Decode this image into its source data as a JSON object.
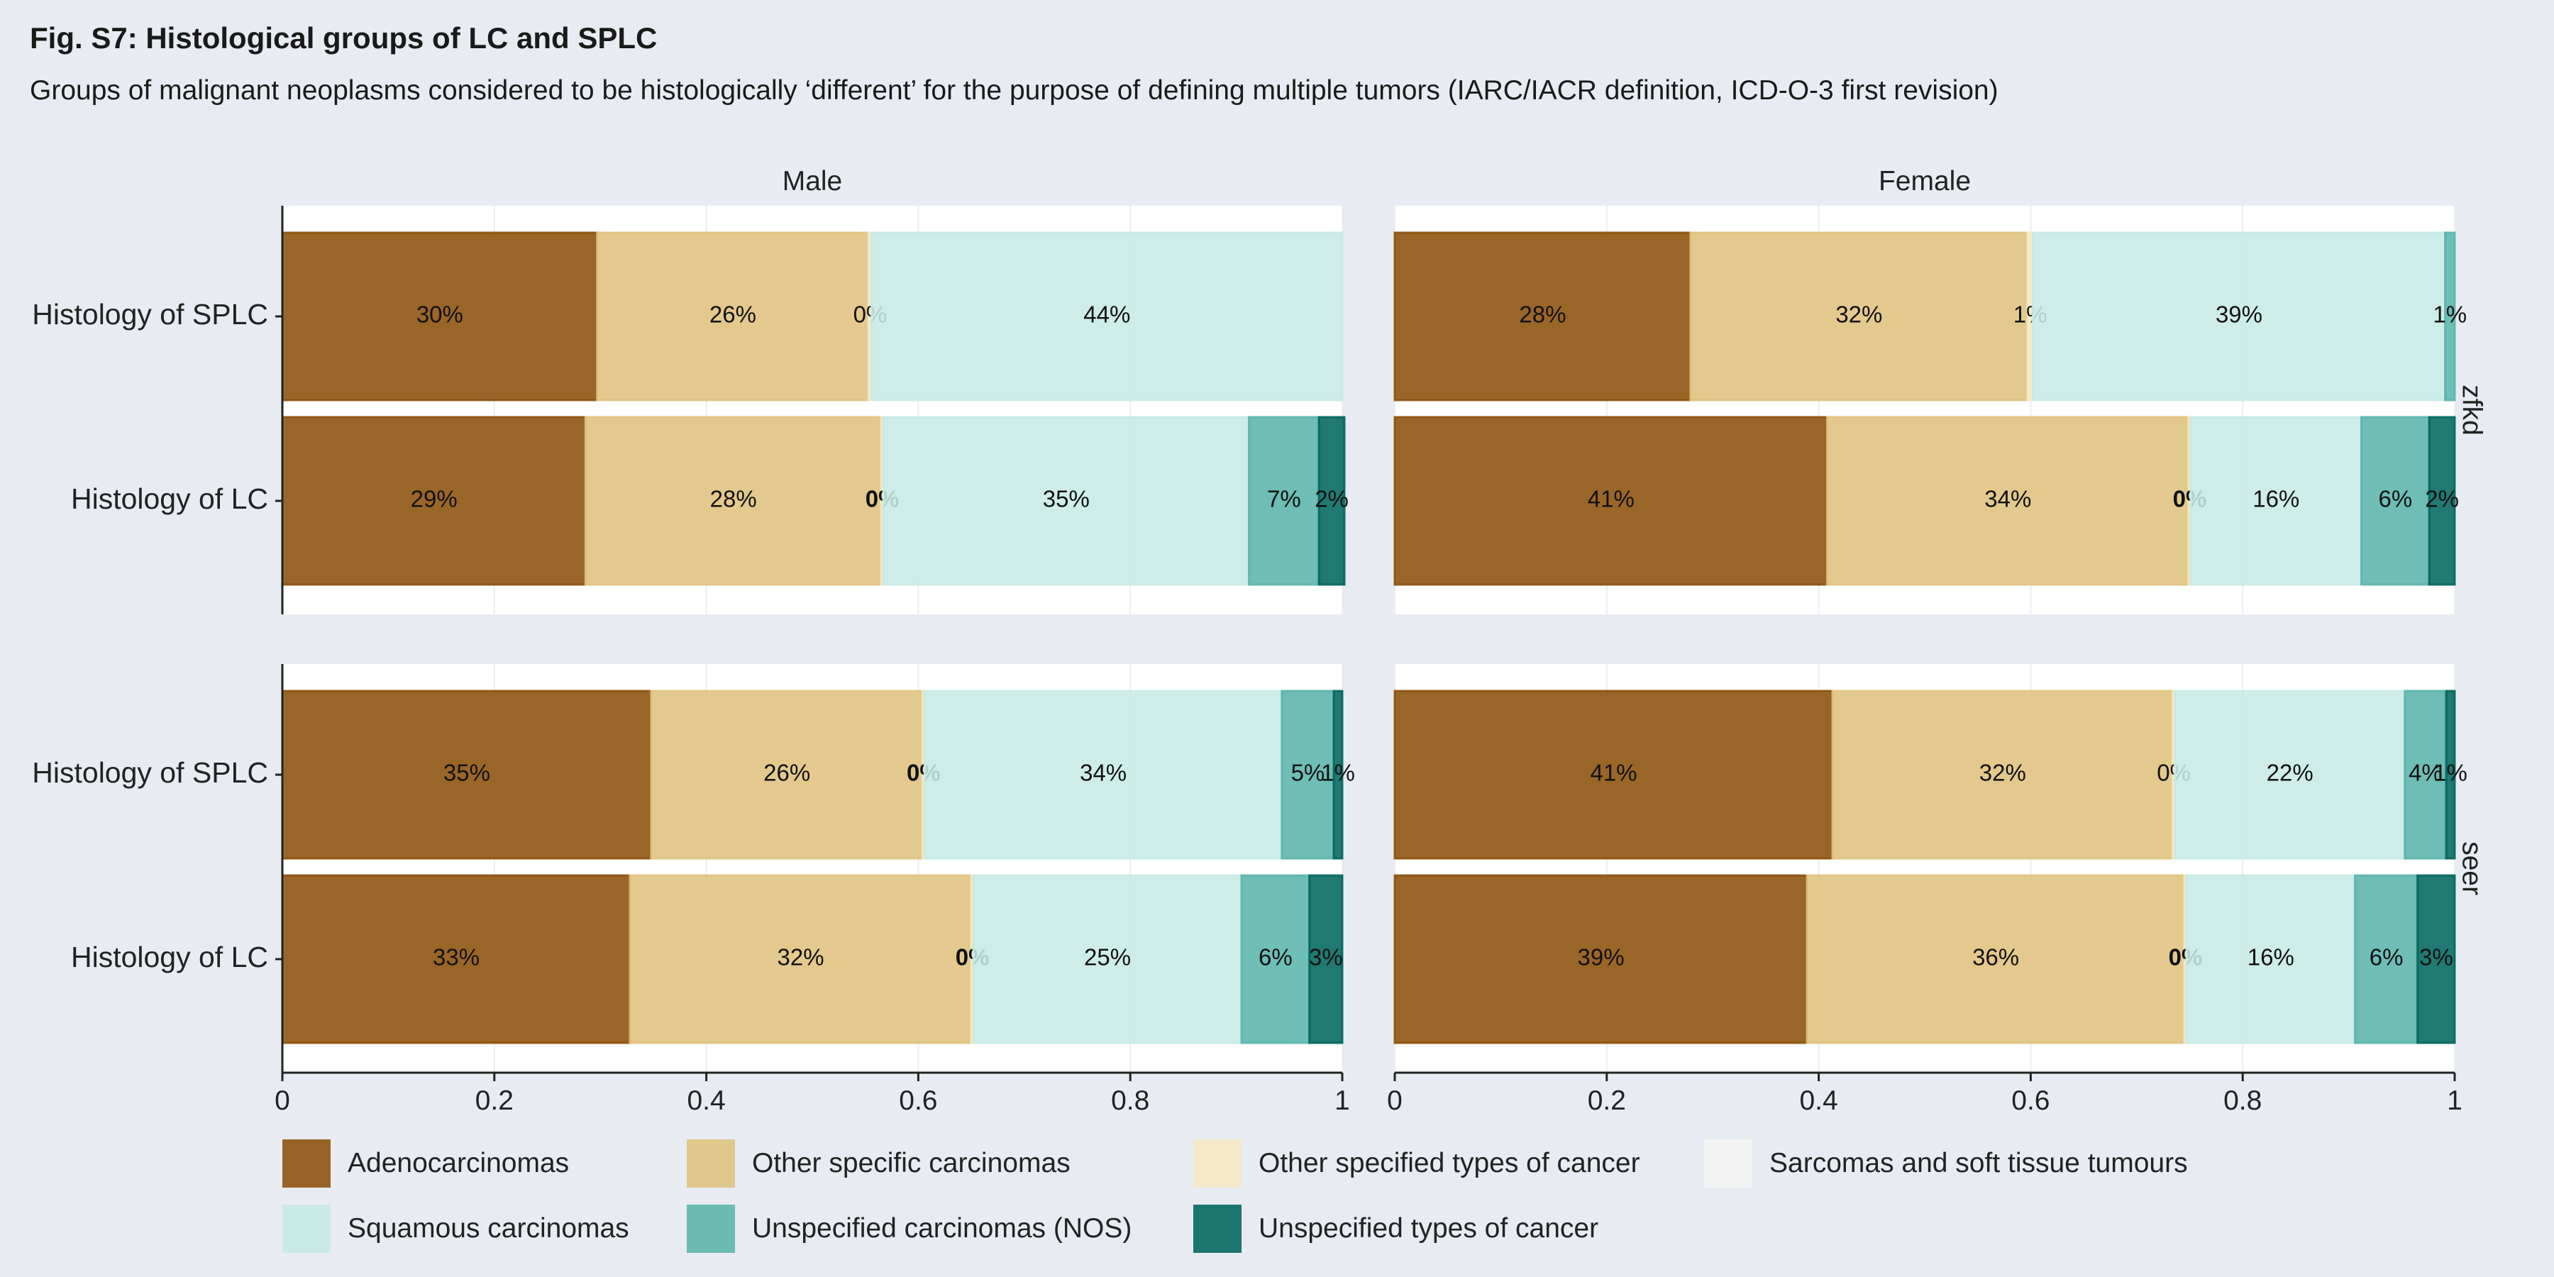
{
  "figure": {
    "title": "Fig. S7: Histological groups of LC and SPLC",
    "subtitle": "Groups of malignant neoplasms considered to be histologically ‘different’ for the purpose of defining multiple tumors (IARC/IACR definition, ICD-O-3 first revision)"
  },
  "colors": {
    "Adenocarcinomas": "#8c510a",
    "Other specific carcinomas": "#dfc27d",
    "Other specified types of cancer": "#f6e8c3",
    "Sarcomas and soft tissue tumours": "#f5f5f5",
    "Squamous carcinomas": "#c7eae5",
    "Unspecified carcinomas (NOS)": "#5ab4ac",
    "Unspecified types of cancer": "#01665e"
  },
  "legend": {
    "row1": [
      "Adenocarcinomas",
      "Other specific carcinomas",
      "Other specified types of cancer",
      "Sarcomas and soft tissue tumours"
    ],
    "row2": [
      "Squamous carcinomas",
      "Unspecified carcinomas (NOS)",
      "Unspecified types of cancer"
    ]
  },
  "chart_data": {
    "type": "bar",
    "orientation": "horizontal",
    "stacked": true,
    "columns": [
      "Male",
      "Female"
    ],
    "rows": [
      "zfkd",
      "seer"
    ],
    "categories": [
      "Histology of SPLC",
      "Histology of LC"
    ],
    "xlim": [
      0,
      1
    ],
    "x_ticks": [
      0,
      0.2,
      0.4,
      0.6,
      0.8,
      1
    ],
    "x_tick_labels": [
      "0",
      "0.2",
      "0.4",
      "0.6",
      "0.8",
      "1"
    ],
    "grid": true,
    "legend_position": "bottom",
    "series_order": [
      "Adenocarcinomas",
      "Other specific carcinomas",
      "Other specified types of cancer",
      "Sarcomas and soft tissue tumours",
      "Squamous carcinomas",
      "Unspecified carcinomas (NOS)",
      "Unspecified types of cancer"
    ],
    "panels": [
      {
        "row": "zfkd",
        "column": "Male",
        "bars": [
          {
            "category": "Histology of SPLC",
            "values": [
              0.297,
              0.256,
              0.003,
              0,
              0.444,
              0,
              0
            ],
            "labels": [
              "30%",
              "26%",
              "0%",
              "",
              "44%",
              "",
              ""
            ]
          },
          {
            "category": "Histology of LC",
            "values": [
              0.286,
              0.279,
              0.002,
              0,
              0.345,
              0.066,
              0.024
            ],
            "labels": [
              "29%",
              "28%",
              "0%",
              "",
              "35%",
              "7%",
              "2%"
            ]
          }
        ]
      },
      {
        "row": "zfkd",
        "column": "Female",
        "bars": [
          {
            "category": "Histology of SPLC",
            "values": [
              0.279,
              0.318,
              0.005,
              0,
              0.389,
              0.009,
              0
            ],
            "labels": [
              "28%",
              "32%",
              "1%",
              "",
              "39%",
              "1%",
              ""
            ]
          },
          {
            "category": "Histology of LC",
            "values": [
              0.408,
              0.341,
              0.002,
              0,
              0.161,
              0.064,
              0.024
            ],
            "labels": [
              "41%",
              "34%",
              "0%",
              "",
              "16%",
              "6%",
              "2%"
            ]
          }
        ]
      },
      {
        "row": "seer",
        "column": "Male",
        "bars": [
          {
            "category": "Histology of SPLC",
            "values": [
              0.348,
              0.256,
              0.002,
              0,
              0.337,
              0.049,
              0.008
            ],
            "labels": [
              "35%",
              "26%",
              "0%",
              "",
              "34%",
              "5%",
              "1%"
            ]
          },
          {
            "category": "Histology of LC",
            "values": [
              0.328,
              0.322,
              0.002,
              0,
              0.253,
              0.064,
              0.031
            ],
            "labels": [
              "33%",
              "32%",
              "0%",
              "",
              "25%",
              "6%",
              "3%"
            ]
          }
        ]
      },
      {
        "row": "seer",
        "column": "Female",
        "bars": [
          {
            "category": "Histology of SPLC",
            "values": [
              0.413,
              0.321,
              0.002,
              0,
              0.217,
              0.039,
              0.008
            ],
            "labels": [
              "41%",
              "32%",
              "0%",
              "",
              "22%",
              "4%",
              "1%"
            ]
          },
          {
            "category": "Histology of LC",
            "values": [
              0.389,
              0.356,
              0.002,
              0,
              0.159,
              0.059,
              0.035
            ],
            "labels": [
              "39%",
              "36%",
              "0%",
              "",
              "16%",
              "6%",
              "3%"
            ]
          }
        ]
      }
    ]
  }
}
